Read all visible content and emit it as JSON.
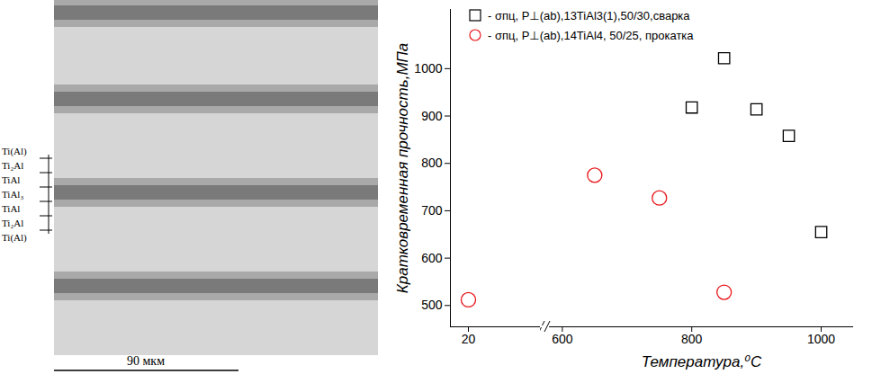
{
  "chart_data": {
    "type": "scatter",
    "x_label": "Температура,⁰C",
    "y_label": "Кратковременная прочность,МПа",
    "xlim": [
      [
        0,
        100
      ],
      [
        580,
        1050
      ]
    ],
    "xticks": [
      [
        20
      ],
      [
        600,
        800,
        1000
      ]
    ],
    "ylim": [
      455,
      1125
    ],
    "yticks": [
      500,
      600,
      700,
      800,
      900,
      1000
    ],
    "grid": false,
    "legend": "top",
    "series": [
      {
        "name": "- σпц, P⊥(ab),13TiAl3(1),50/30,сварка",
        "color": "#000000",
        "marker": "square",
        "x": [
          800,
          850,
          900,
          950,
          1000
        ],
        "values": [
          918,
          1022,
          914,
          858,
          655
        ]
      },
      {
        "name": "- σпц, P⊥(ab),14TiAl4, 50/25, прокатка",
        "color": "#e8161b",
        "marker": "circle",
        "x": [
          20,
          650,
          750,
          850
        ],
        "values": [
          512,
          775,
          727,
          528
        ]
      }
    ]
  },
  "micrograph": {
    "layers": [
      "Ti(Al)",
      "Ti₂Al",
      "TiAl",
      "TiAl₃",
      "TiAl",
      "Ti₂Al",
      "Ti(Al)"
    ],
    "scale_bar": "90 мкм"
  }
}
